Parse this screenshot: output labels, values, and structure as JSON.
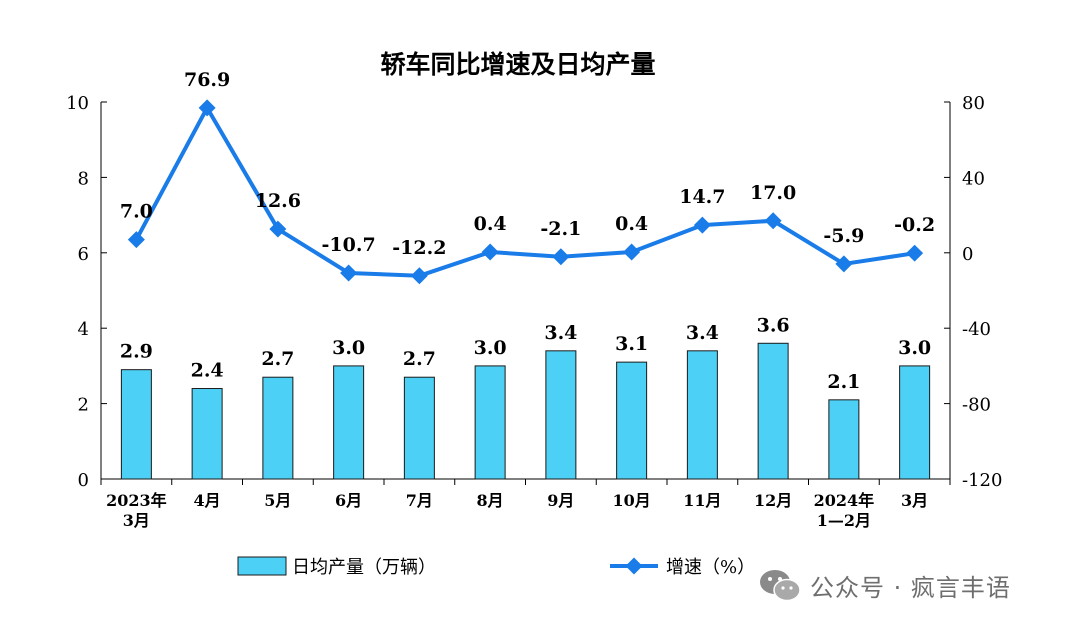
{
  "chart_data": {
    "type": "bar+line",
    "title": "轿车同比增速及日均产量",
    "categories": [
      "2023年\n3月",
      "4月",
      "5月",
      "6月",
      "7月",
      "8月",
      "9月",
      "10月",
      "11月",
      "12月",
      "2024年\n1—2月",
      "3月"
    ],
    "series": [
      {
        "name": "日均产量（万辆）",
        "type": "bar",
        "axis": "left",
        "values": [
          2.9,
          2.4,
          2.7,
          3.0,
          2.7,
          3.0,
          3.4,
          3.1,
          3.4,
          3.6,
          2.1,
          3.0
        ],
        "labels": [
          "2.9",
          "2.4",
          "2.7",
          "3.0",
          "2.7",
          "3.0",
          "3.4",
          "3.1",
          "3.4",
          "3.6",
          "2.1",
          "3.0"
        ]
      },
      {
        "name": "增速（%）",
        "type": "line",
        "axis": "right",
        "values": [
          7.0,
          76.9,
          12.6,
          -10.7,
          -12.2,
          0.4,
          -2.1,
          0.4,
          14.7,
          17.0,
          -5.9,
          -0.2
        ],
        "labels": [
          "7.0",
          "76.9",
          "12.6",
          "-10.7",
          "-12.2",
          "0.4",
          "-2.1",
          "0.4",
          "14.7",
          "17.0",
          "-5.9",
          "-0.2"
        ]
      }
    ],
    "y_left": {
      "min": 0,
      "max": 10,
      "ticks": [
        "0",
        "2",
        "4",
        "6",
        "8",
        "10"
      ]
    },
    "y_right": {
      "min": -120,
      "max": 80,
      "ticks": [
        "-120",
        "-80",
        "-40",
        "0",
        "40",
        "80"
      ]
    },
    "legend": "bottom",
    "colors": {
      "bar_fill": "#4dd0f5",
      "bar_stroke": "#1a1a1a",
      "line": "#1a7ce8",
      "axis": "#000000",
      "text": "#000000"
    }
  },
  "watermark": {
    "text": "公众号 · 疯言丰语"
  }
}
